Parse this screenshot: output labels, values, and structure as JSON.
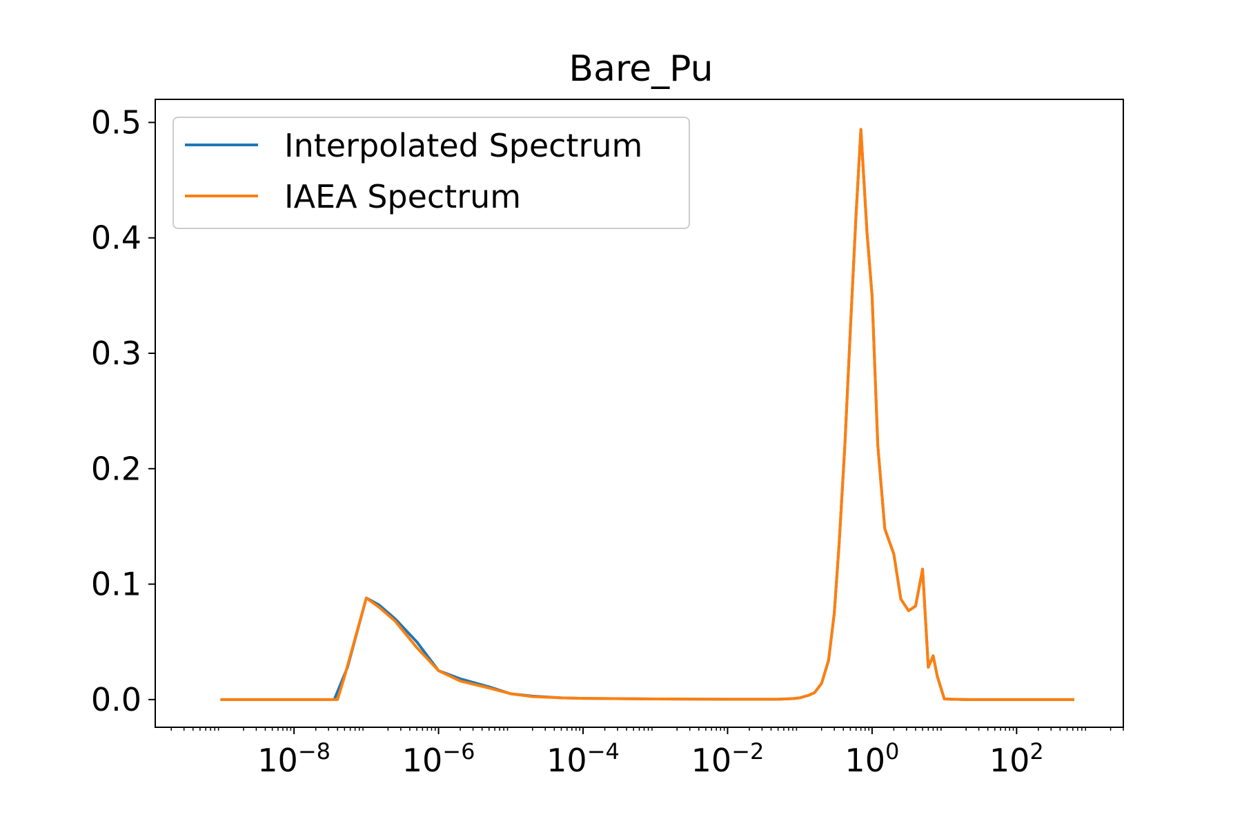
{
  "chart_data": {
    "type": "line",
    "title": "Bare_Pu",
    "xlabel": "",
    "ylabel": "",
    "xscale": "log",
    "xlim": [
      1.2e-10,
      3000
    ],
    "ylim": [
      -0.024,
      0.52
    ],
    "x_ticks": [
      {
        "value": 1e-08,
        "base": "10",
        "exp": "−8"
      },
      {
        "value": 1e-06,
        "base": "10",
        "exp": "−6"
      },
      {
        "value": 0.0001,
        "base": "10",
        "exp": "−4"
      },
      {
        "value": 0.01,
        "base": "10",
        "exp": "−2"
      },
      {
        "value": 1,
        "base": "10",
        "exp": "0"
      },
      {
        "value": 100,
        "base": "10",
        "exp": "2"
      }
    ],
    "y_ticks": [
      {
        "value": 0.0,
        "label": "0.0"
      },
      {
        "value": 0.1,
        "label": "0.1"
      },
      {
        "value": 0.2,
        "label": "0.2"
      },
      {
        "value": 0.3,
        "label": "0.3"
      },
      {
        "value": 0.4,
        "label": "0.4"
      },
      {
        "value": 0.5,
        "label": "0.5"
      }
    ],
    "grid": false,
    "legend_position": "upper-left",
    "series": [
      {
        "name": "Interpolated Spectrum",
        "color": "#1f77b4",
        "x": [
          1e-09,
          3.6e-08,
          5.5e-08,
          1e-07,
          1.5e-07,
          2.5e-07,
          5e-07,
          1e-06,
          2e-06,
          5e-06,
          1e-05,
          2e-05,
          5e-05,
          0.0001,
          0.001,
          0.01,
          0.05,
          0.08,
          0.1,
          0.13,
          0.16,
          0.2,
          0.25,
          0.3,
          0.35,
          0.42,
          0.5,
          0.6,
          0.7,
          0.85,
          1.0,
          1.2,
          1.5,
          2.0,
          2.5,
          3.2,
          4.0,
          5.0,
          6.0,
          7.0,
          8.0,
          10.0,
          13.0,
          15.0,
          18.0,
          22.0,
          40.0,
          100.0,
          600.0
        ],
        "y": [
          0.0,
          0.0,
          0.028,
          0.088,
          0.082,
          0.07,
          0.05,
          0.025,
          0.018,
          0.011,
          0.005,
          0.003,
          0.0015,
          0.001,
          0.0005,
          0.0003,
          0.0003,
          0.0008,
          0.0015,
          0.0035,
          0.006,
          0.014,
          0.034,
          0.075,
          0.135,
          0.22,
          0.32,
          0.42,
          0.494,
          0.405,
          0.35,
          0.22,
          0.148,
          0.126,
          0.087,
          0.077,
          0.081,
          0.113,
          0.028,
          0.038,
          0.02,
          0.0005,
          0.0003,
          0.0002,
          0.0001,
          0.0,
          0.0,
          0.0,
          0.0
        ]
      },
      {
        "name": "IAEA Spectrum",
        "color": "#ff7f0e",
        "x": [
          1e-09,
          4e-08,
          5e-08,
          1e-07,
          1.5e-07,
          2.5e-07,
          5e-07,
          1e-06,
          2e-06,
          5e-06,
          1e-05,
          2e-05,
          5e-05,
          0.0001,
          0.001,
          0.01,
          0.05,
          0.08,
          0.1,
          0.13,
          0.16,
          0.2,
          0.25,
          0.3,
          0.35,
          0.42,
          0.5,
          0.6,
          0.7,
          0.85,
          1.0,
          1.2,
          1.5,
          2.0,
          2.5,
          3.2,
          4.0,
          5.0,
          6.0,
          7.0,
          8.0,
          10.0,
          13.0,
          15.0,
          18.0,
          22.0,
          40.0,
          100.0,
          600.0
        ],
        "y": [
          0.0,
          0.0,
          0.02,
          0.088,
          0.08,
          0.068,
          0.045,
          0.025,
          0.016,
          0.01,
          0.005,
          0.0025,
          0.0015,
          0.001,
          0.0005,
          0.0003,
          0.0003,
          0.0008,
          0.0015,
          0.0035,
          0.006,
          0.014,
          0.034,
          0.075,
          0.135,
          0.22,
          0.32,
          0.42,
          0.494,
          0.405,
          0.35,
          0.22,
          0.148,
          0.126,
          0.087,
          0.077,
          0.081,
          0.113,
          0.028,
          0.038,
          0.02,
          0.0005,
          0.0003,
          0.0002,
          0.0001,
          0.0,
          0.0,
          0.0,
          0.0
        ]
      }
    ]
  }
}
